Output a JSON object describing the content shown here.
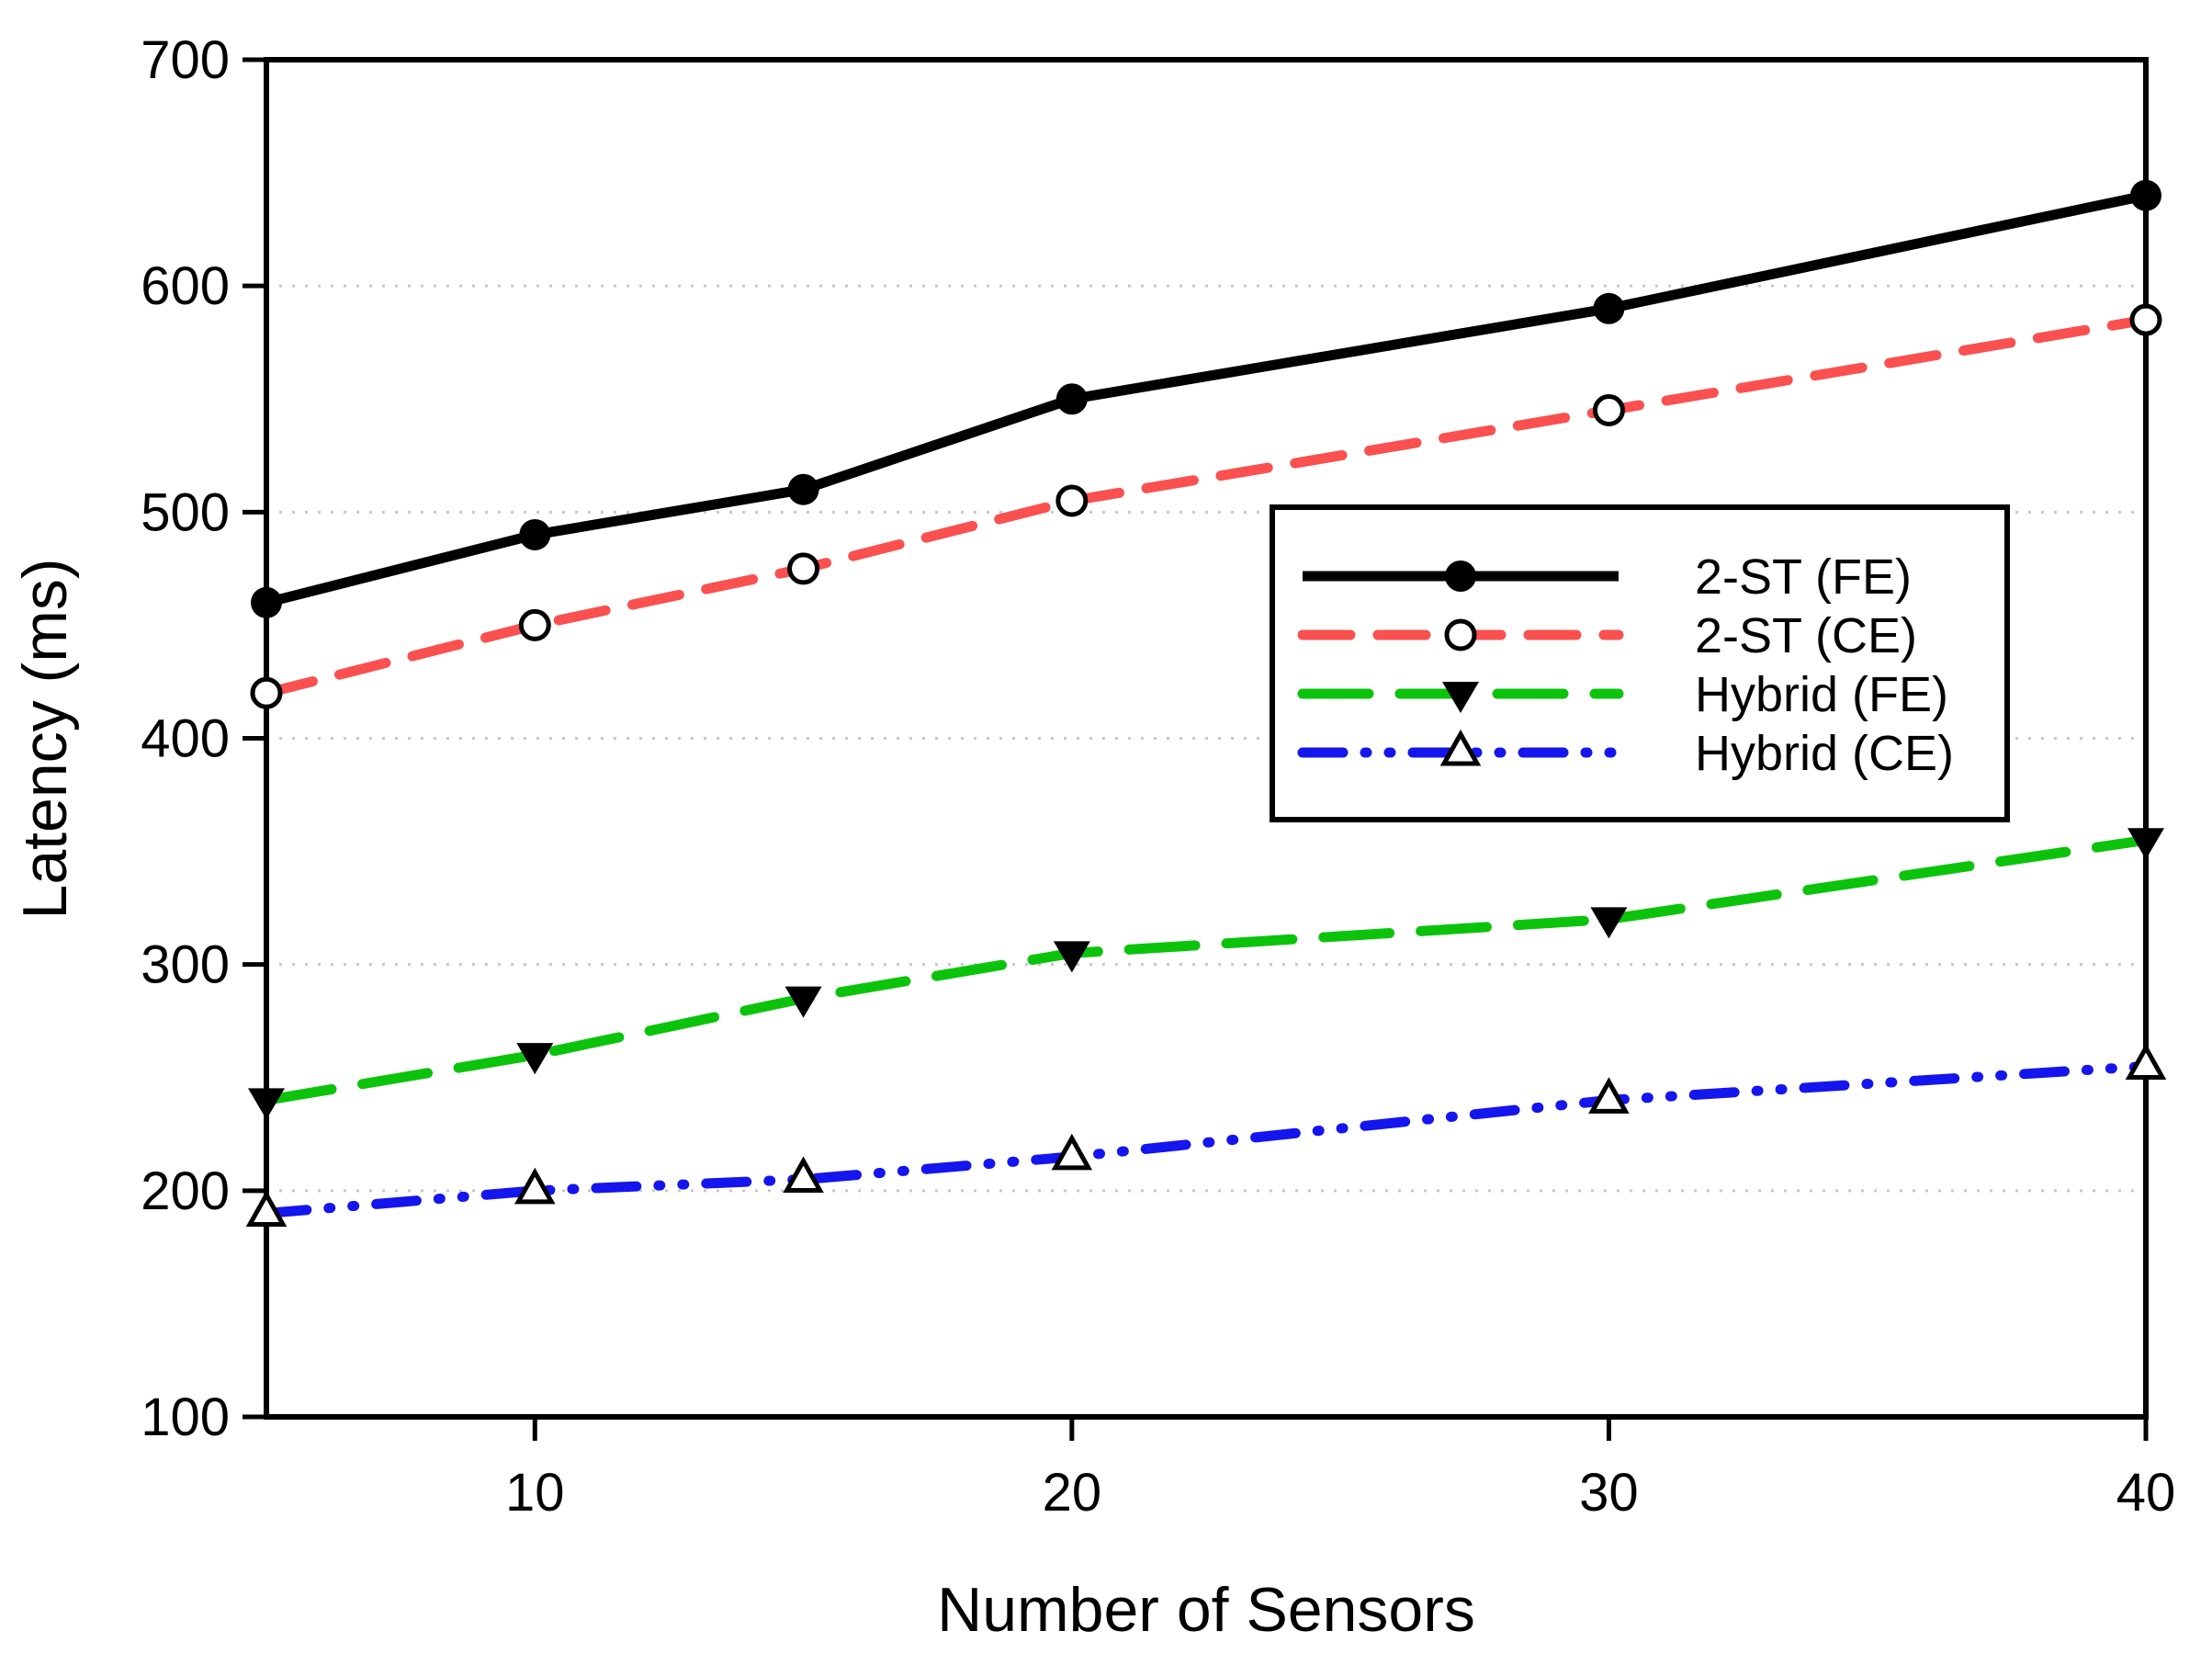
{
  "chart_data": {
    "type": "line",
    "title": "",
    "xlabel": "Number of Sensors",
    "ylabel": "Latency (ms)",
    "x": [
      5,
      10,
      15,
      20,
      30,
      40
    ],
    "xlim": [
      5,
      40
    ],
    "ylim": [
      100,
      700
    ],
    "xticks": [
      10,
      20,
      30,
      40
    ],
    "yticks": [
      100,
      200,
      300,
      400,
      500,
      600,
      700
    ],
    "grid_y": [
      200,
      300,
      400,
      500,
      600
    ],
    "grid": "horizontal-dotted",
    "legend_position": "inside-upper-right",
    "series": [
      {
        "name": "2-ST (FE)",
        "values": [
          460,
          490,
          510,
          550,
          590,
          640
        ],
        "color": "#000000",
        "line": "solid",
        "marker": "circle-filled"
      },
      {
        "name": "2-ST (CE)",
        "values": [
          420,
          450,
          475,
          505,
          545,
          585
        ],
        "color": "#fa5050",
        "line": "dashed",
        "marker": "circle-open"
      },
      {
        "name": "Hybrid (FE)",
        "values": [
          240,
          260,
          285,
          305,
          320,
          355
        ],
        "color": "#0cc30c",
        "line": "long-dashed",
        "marker": "triangle-down-filled"
      },
      {
        "name": "Hybrid (CE)",
        "values": [
          190,
          200,
          205,
          215,
          240,
          255
        ],
        "color": "#1515ee",
        "line": "dash-dot-dot",
        "marker": "triangle-up-open"
      }
    ],
    "colors": {
      "axis": "#000000",
      "grid": "#c8c8c8",
      "marker_stroke": "#000000",
      "background": "#ffffff"
    }
  }
}
